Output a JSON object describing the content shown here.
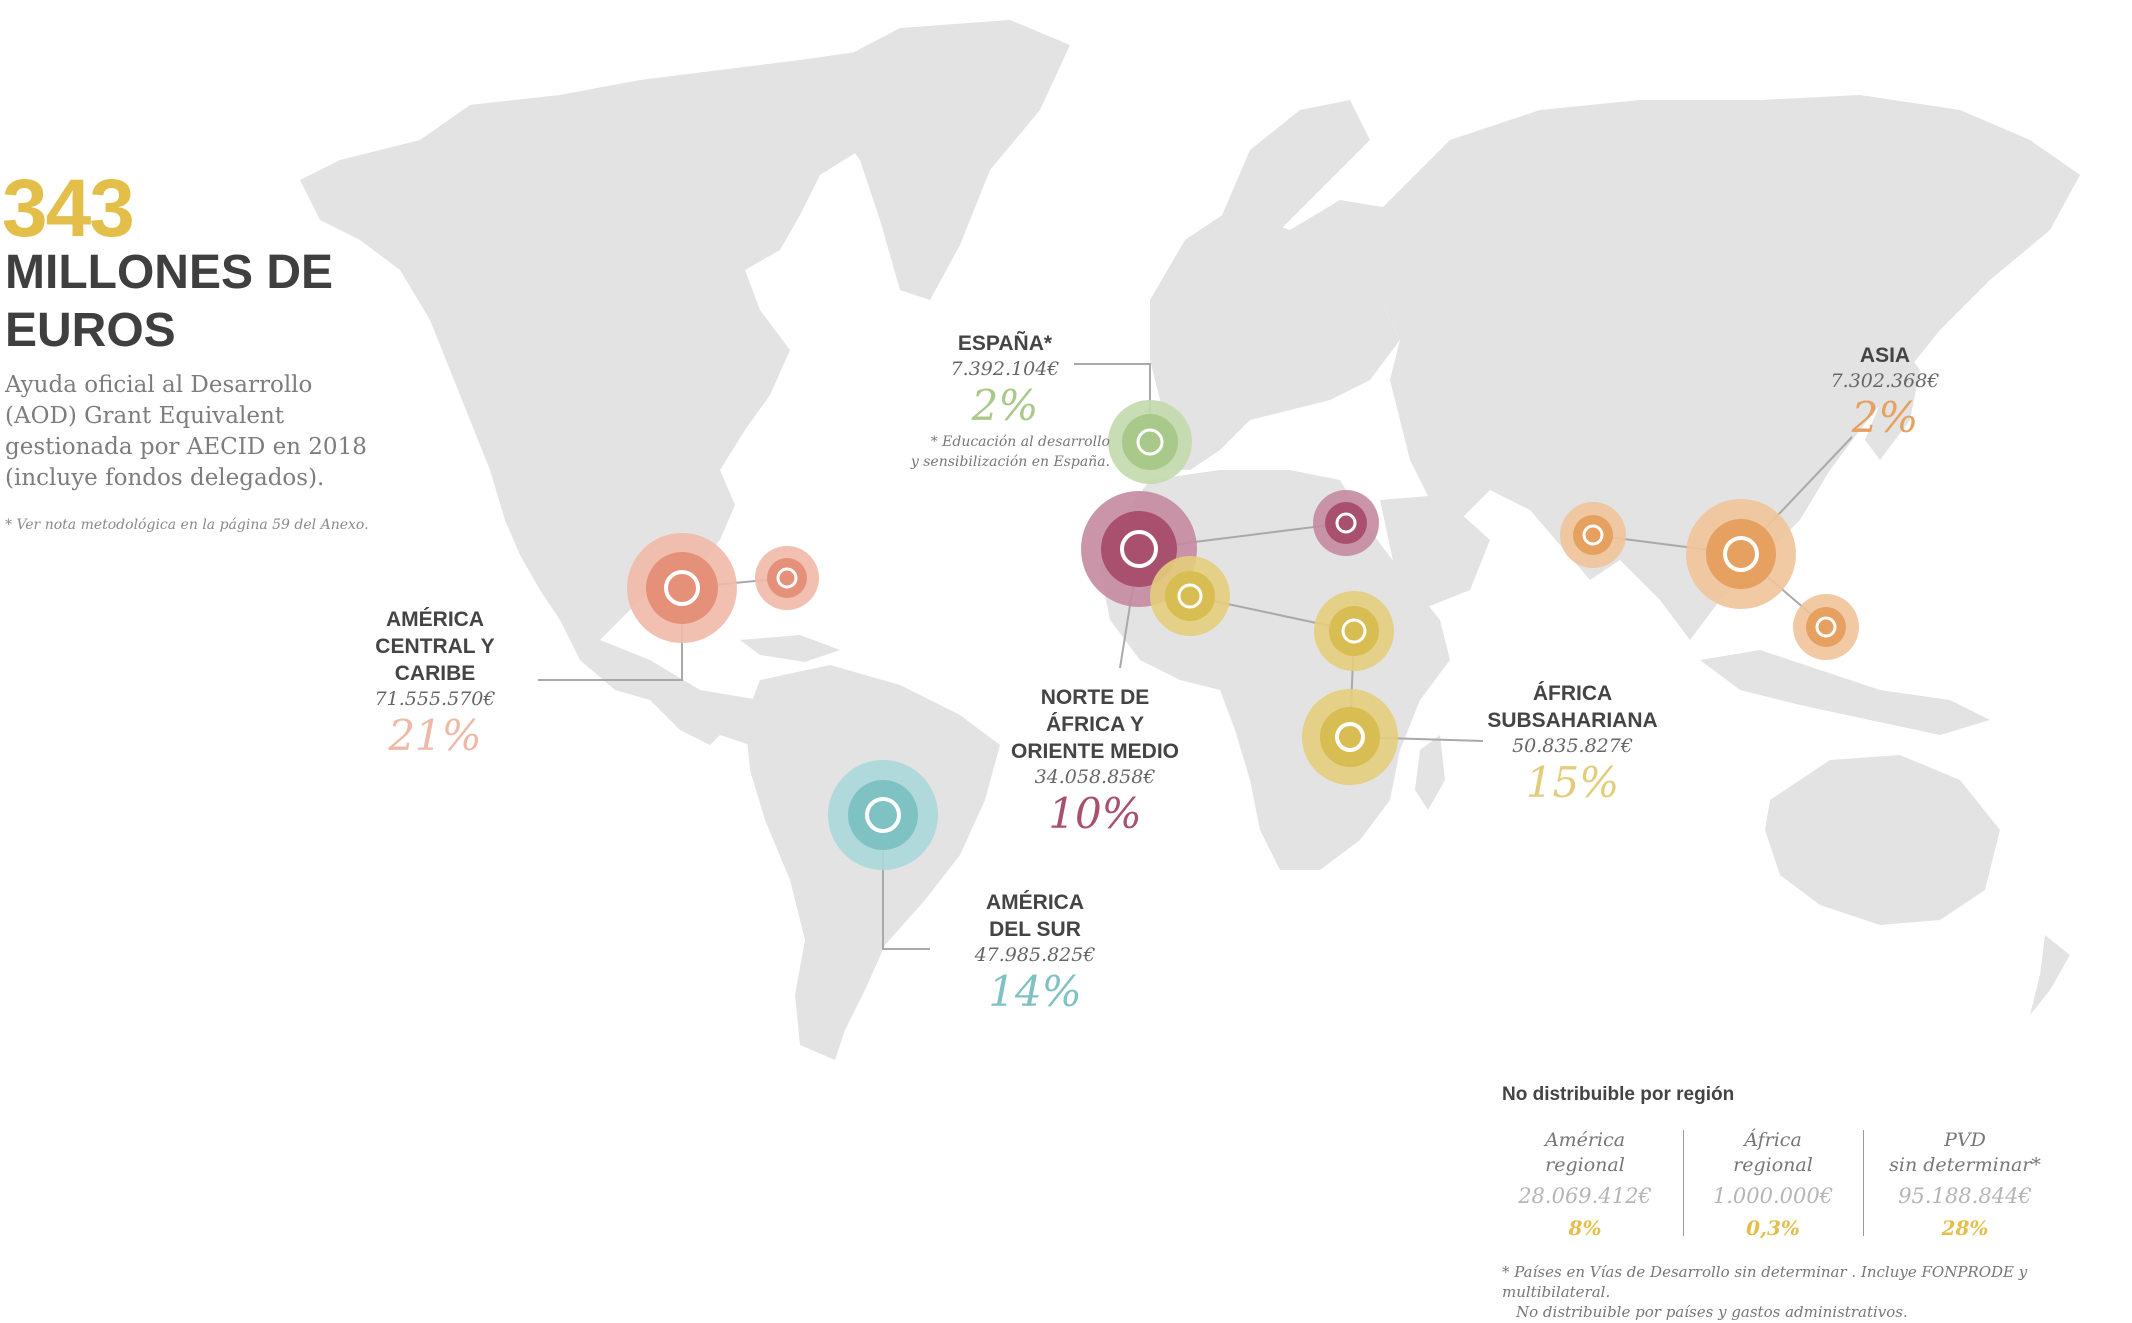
{
  "hero": {
    "number": "343",
    "unit": "MILLONES DE EUROS",
    "description": "Ayuda oficial al Desarrollo (AOD) Grant Equivalent gestionada por AECID en 2018 (incluye fondos delegados).",
    "note": "* Ver nota metodológica en la página 59 del Anexo."
  },
  "colors": {
    "land": "#e3e3e3",
    "gold": "#e3bf4a",
    "espana": "#a9c98a",
    "america_central": "#e5917a",
    "norte_africa": "#a8506e",
    "asia": "#e6a060",
    "america_sur": "#7fc2c4",
    "africa_sub": "#d8bd52"
  },
  "regions": {
    "espana": {
      "name": "ESPAÑA*",
      "amount": "7.392.104€",
      "percent": "2%",
      "note": "* Educación al desarrollo\ny sensibilización en España."
    },
    "america_central": {
      "name": "AMÉRICA\nCENTRAL Y\nCARIBE",
      "amount": "71.555.570€",
      "percent": "21%"
    },
    "norte_africa": {
      "name": "NORTE DE\nÁFRICA Y\nORIENTE MEDIO",
      "amount": "34.058.858€",
      "percent": "10%"
    },
    "asia": {
      "name": "ASIA",
      "amount": "7.302.368€",
      "percent": "2%"
    },
    "america_sur": {
      "name": "AMÉRICA\nDEL SUR",
      "amount": "47.985.825€",
      "percent": "14%"
    },
    "africa_sub": {
      "name": "ÁFRICA\nSUBSAHARIANA",
      "amount": "50.835.827€",
      "percent": "15%"
    }
  },
  "no_distribuible": {
    "title": "No distribuible por región",
    "items": [
      {
        "label": "América\nregional",
        "amount": "28.069.412€",
        "percent": "8%"
      },
      {
        "label": "África\nregional",
        "amount": "1.000.000€",
        "percent": "0,3%"
      },
      {
        "label": "PVD\nsin determinar*",
        "amount": "95.188.844€",
        "percent": "28%"
      }
    ],
    "footnote_1": "* Países en Vías de Desarrollo sin determinar . Incluye FONPRODE y multibilateral.",
    "footnote_2": "No distribuible por países y gastos administrativos."
  }
}
